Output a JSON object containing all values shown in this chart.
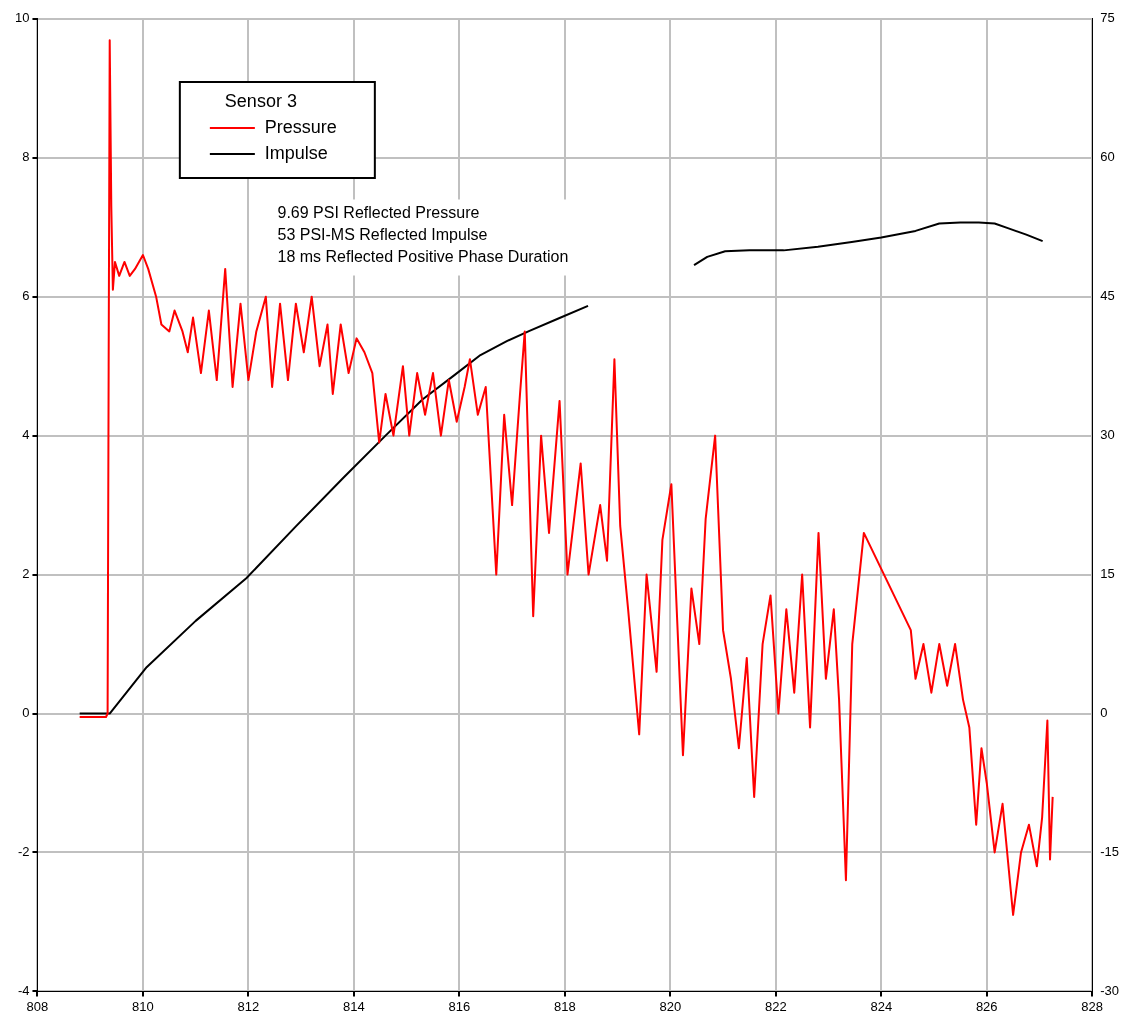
{
  "chart_data": {
    "type": "line",
    "legend_title": "Sensor 3",
    "legend": "top left",
    "grid": true,
    "marker": "none",
    "line_style": "solid",
    "annotations": [
      "9.69 PSI Reflected Pressure",
      "53 PSI-MS Reflected Impulse",
      "18 ms Reflected Positive Phase Duration"
    ],
    "xlim": [
      808,
      828
    ],
    "xticks": [
      808,
      810,
      812,
      814,
      816,
      818,
      820,
      822,
      824,
      826,
      828
    ],
    "ylim": [
      -4,
      10
    ],
    "yticks": [
      -4,
      -2,
      0,
      2,
      4,
      6,
      8,
      10
    ],
    "y2lim": [
      -30,
      75
    ],
    "y2ticks": [
      -30,
      -15,
      0,
      15,
      30,
      45,
      60,
      75
    ],
    "series": [
      {
        "name": "Pressure",
        "color": "#ff0000",
        "x": [
          808.8,
          809.3,
          809.33,
          809.35,
          809.37,
          809.4,
          809.43,
          809.47,
          809.55,
          809.65,
          809.75,
          809.85,
          810.0,
          810.1,
          810.25,
          810.35,
          810.5,
          810.6,
          810.75,
          810.85,
          810.95,
          811.1,
          811.25,
          811.4,
          811.56,
          811.7,
          811.85,
          812.0,
          812.15,
          812.33,
          812.45,
          812.6,
          812.75,
          812.9,
          813.05,
          813.2,
          813.35,
          813.5,
          813.6,
          813.75,
          813.9,
          814.05,
          814.2,
          814.35,
          814.48,
          814.6,
          814.75,
          814.93,
          815.05,
          815.2,
          815.35,
          815.5,
          815.65,
          815.8,
          815.95,
          816.1,
          816.2,
          816.35,
          816.5,
          816.7,
          816.85,
          817.0,
          817.15,
          817.24,
          817.4,
          817.55,
          817.7,
          817.9,
          818.05,
          818.3,
          818.45,
          818.67,
          818.8,
          818.94,
          819.05,
          819.2,
          819.41,
          819.55,
          819.74,
          819.85,
          820.02,
          820.24,
          820.4,
          820.55,
          820.67,
          820.85,
          821.0,
          821.15,
          821.3,
          821.45,
          821.59,
          821.75,
          821.9,
          822.05,
          822.2,
          822.35,
          822.5,
          822.65,
          822.81,
          822.95,
          823.1,
          823.2,
          823.33,
          823.45,
          823.67,
          824.56,
          824.65,
          824.8,
          824.95,
          825.1,
          825.25,
          825.4,
          825.55,
          825.67,
          825.8,
          825.9,
          826.0,
          826.15,
          826.3,
          826.5,
          826.65,
          826.8,
          826.95,
          827.05,
          827.15,
          827.2,
          827.25
        ],
        "values": [
          -0.05,
          -0.05,
          0.0,
          5.0,
          9.69,
          7.3,
          6.1,
          6.5,
          6.3,
          6.5,
          6.3,
          6.4,
          6.6,
          6.4,
          6.0,
          5.6,
          5.5,
          5.8,
          5.5,
          5.2,
          5.7,
          4.9,
          5.8,
          4.8,
          6.4,
          4.7,
          5.9,
          4.8,
          5.5,
          6.0,
          4.7,
          5.9,
          4.8,
          5.9,
          5.2,
          6.0,
          5.0,
          5.6,
          4.6,
          5.6,
          4.9,
          5.4,
          5.2,
          4.9,
          3.9,
          4.6,
          4.0,
          5.0,
          4.0,
          4.9,
          4.3,
          4.9,
          4.0,
          4.8,
          4.2,
          4.7,
          5.1,
          4.3,
          4.7,
          2.0,
          4.3,
          3.0,
          4.6,
          5.5,
          1.4,
          4.0,
          2.6,
          4.5,
          2.0,
          3.6,
          2.0,
          3.0,
          2.2,
          5.1,
          2.7,
          1.5,
          -0.3,
          2.0,
          0.6,
          2.5,
          3.3,
          -0.6,
          1.8,
          1.0,
          2.8,
          4.0,
          1.2,
          0.5,
          -0.5,
          0.8,
          -1.2,
          1.0,
          1.7,
          0.0,
          1.5,
          0.3,
          2.0,
          -0.2,
          2.6,
          0.5,
          1.5,
          0.2,
          -2.4,
          1.0,
          2.6,
          1.2,
          0.5,
          1.0,
          0.3,
          1.0,
          0.4,
          1.0,
          0.2,
          -0.2,
          -1.6,
          -0.5,
          -1.0,
          -2.0,
          -1.3,
          -2.9,
          -2.0,
          -1.6,
          -2.2,
          -1.5,
          -0.1,
          -2.1,
          -1.2
        ]
      },
      {
        "name": "Impulse",
        "color": "#000000",
        "axis": "y2",
        "x": [
          808.8,
          809.37,
          810.07,
          811.0,
          811.96,
          812.9,
          813.81,
          814.6,
          815.3,
          815.9,
          816.4,
          816.9,
          817.33,
          817.9,
          818.44,
          819.5,
          820.45,
          820.7,
          821.04,
          821.5,
          822.15,
          822.8,
          823.44,
          824.0,
          824.65,
          825.1,
          825.5,
          825.85,
          826.15,
          826.4,
          826.75,
          827.06
        ],
        "values": [
          0,
          0,
          5,
          10,
          14.6,
          20.2,
          25.5,
          30,
          33.9,
          36.5,
          38.7,
          40.2,
          41.3,
          42.7,
          44,
          null,
          48.4,
          49.3,
          49.9,
          50,
          50,
          50.4,
          50.9,
          51.4,
          52.1,
          52.9,
          53,
          53,
          52.9,
          52.4,
          51.7,
          51
        ]
      }
    ]
  }
}
